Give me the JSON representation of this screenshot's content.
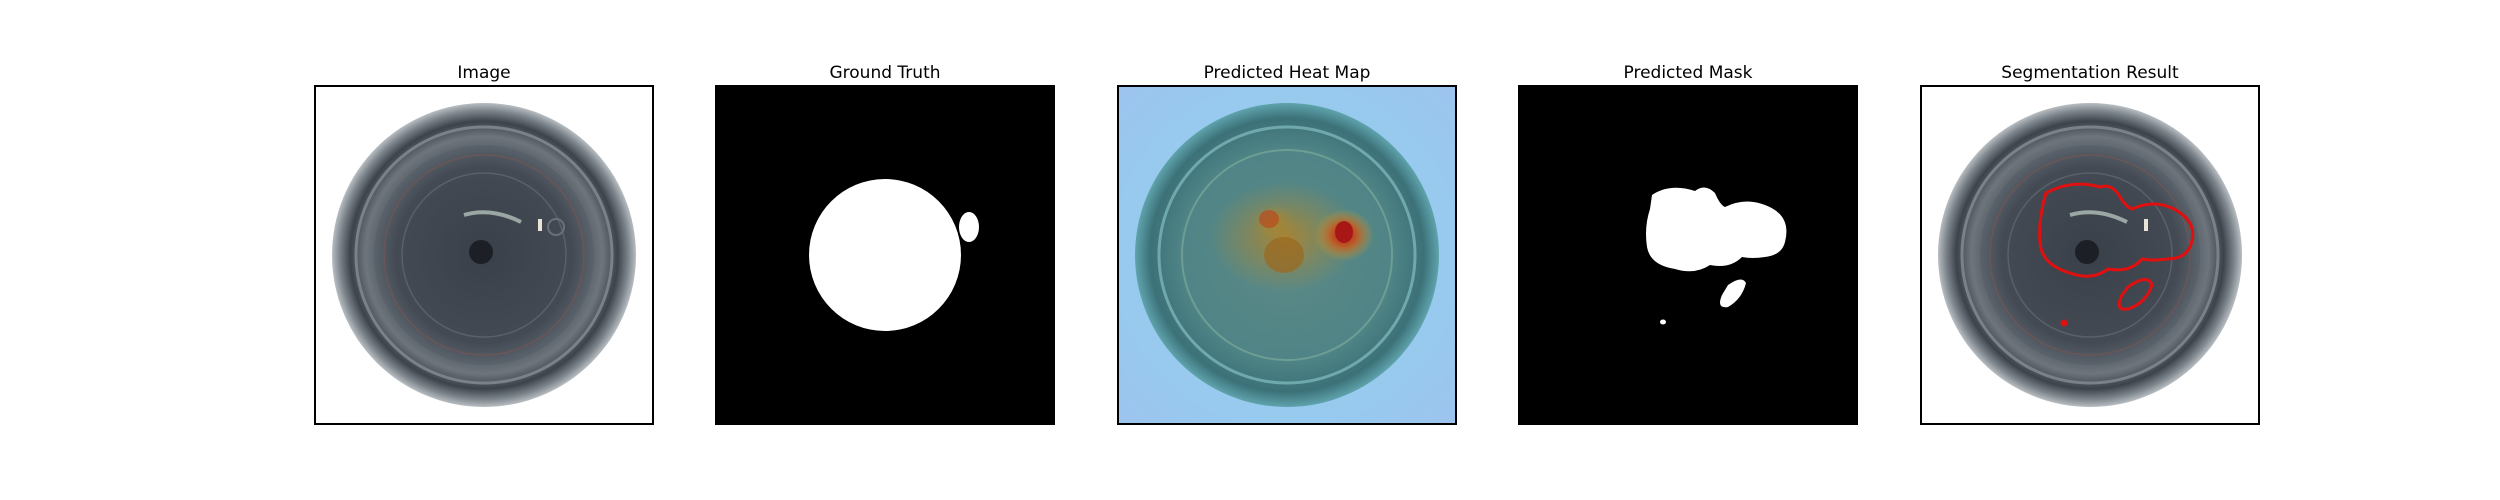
{
  "panels": [
    {
      "title": "Image"
    },
    {
      "title": "Ground Truth"
    },
    {
      "title": "Predicted Heat Map"
    },
    {
      "title": "Predicted Mask"
    },
    {
      "title": "Segmentation Result"
    }
  ],
  "colors": {
    "frame": "#000000",
    "mask_background": "#000000",
    "mask_foreground": "#ffffff",
    "contour": "#e01010",
    "heat_cold": "#7cc8ee",
    "heat_hot": "#b01818"
  }
}
